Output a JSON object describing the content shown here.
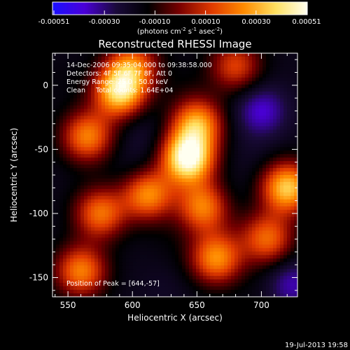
{
  "colorbar": {
    "ticks": [
      "-0.00051",
      "-0.00030",
      "-0.00010",
      "0.00010",
      "0.00030",
      "0.00051"
    ],
    "units_prefix": "(photons cm",
    "units_sup1": "-2",
    "units_mid": " s",
    "units_sup2": "-1",
    "units_mid2": " asec",
    "units_sup3": "-2",
    "units_suffix": ")",
    "colors": [
      "#1a10ff",
      "#4a00d8",
      "#1a0a3a",
      "#000000",
      "#7a0000",
      "#e03a00",
      "#ff8a00",
      "#ffe060",
      "#fffff0"
    ]
  },
  "footer": {
    "timestamp": "19-Jul-2013 19:58"
  },
  "chart_data": {
    "type": "heatmap",
    "title": "Reconstructed RHESSI Image",
    "xlabel": "Heliocentric X (arcsec)",
    "ylabel": "Heliocentric Y (arcsec)",
    "xlim": [
      538,
      728
    ],
    "ylim": [
      -165,
      25
    ],
    "x_ticks": [
      550,
      600,
      650,
      700
    ],
    "y_ticks": [
      0,
      -50,
      -100,
      -150
    ],
    "annotations": [
      "14-Dec-2006 09:35:04.000 to 09:38:58.000",
      "Detectors: 4F 5F 6F 7F 8F, Att 0",
      "Energy Range: 25.0 - 50.0 keV",
      "Clean     Total counts: 1.64E+04"
    ],
    "peak_label": "Position of Peak = [644,-57]",
    "blobs": [
      {
        "x": 643,
        "y": -57,
        "value": 1.0
      },
      {
        "x": 590,
        "y": -5,
        "value": 0.75
      },
      {
        "x": 650,
        "y": -30,
        "value": 0.55
      },
      {
        "x": 565,
        "y": -40,
        "value": 0.45
      },
      {
        "x": 612,
        "y": -85,
        "value": 0.5
      },
      {
        "x": 575,
        "y": -100,
        "value": 0.4
      },
      {
        "x": 655,
        "y": -95,
        "value": 0.45
      },
      {
        "x": 720,
        "y": -80,
        "value": 0.7
      },
      {
        "x": 665,
        "y": -135,
        "value": 0.5
      },
      {
        "x": 560,
        "y": -145,
        "value": 0.45
      },
      {
        "x": 705,
        "y": -120,
        "value": 0.35
      },
      {
        "x": 680,
        "y": 15,
        "value": 0.25
      },
      {
        "x": 600,
        "y": 15,
        "value": 0.35
      },
      {
        "x": 700,
        "y": -20,
        "value": -0.75
      },
      {
        "x": 723,
        "y": -155,
        "value": -0.7
      },
      {
        "x": 605,
        "y": -65,
        "value": -0.45
      },
      {
        "x": 607,
        "y": -35,
        "value": -0.45
      },
      {
        "x": 693,
        "y": -55,
        "value": -0.4
      },
      {
        "x": 675,
        "y": -88,
        "value": -0.4
      },
      {
        "x": 545,
        "y": 5,
        "value": -0.3
      },
      {
        "x": 560,
        "y": -70,
        "value": -0.35
      },
      {
        "x": 640,
        "y": 5,
        "value": -0.3
      },
      {
        "x": 625,
        "y": -160,
        "value": -0.4
      },
      {
        "x": 700,
        "y": -160,
        "value": -0.3
      },
      {
        "x": 690,
        "y": -110,
        "value": -0.3
      },
      {
        "x": 630,
        "y": -120,
        "value": -0.3
      }
    ]
  }
}
